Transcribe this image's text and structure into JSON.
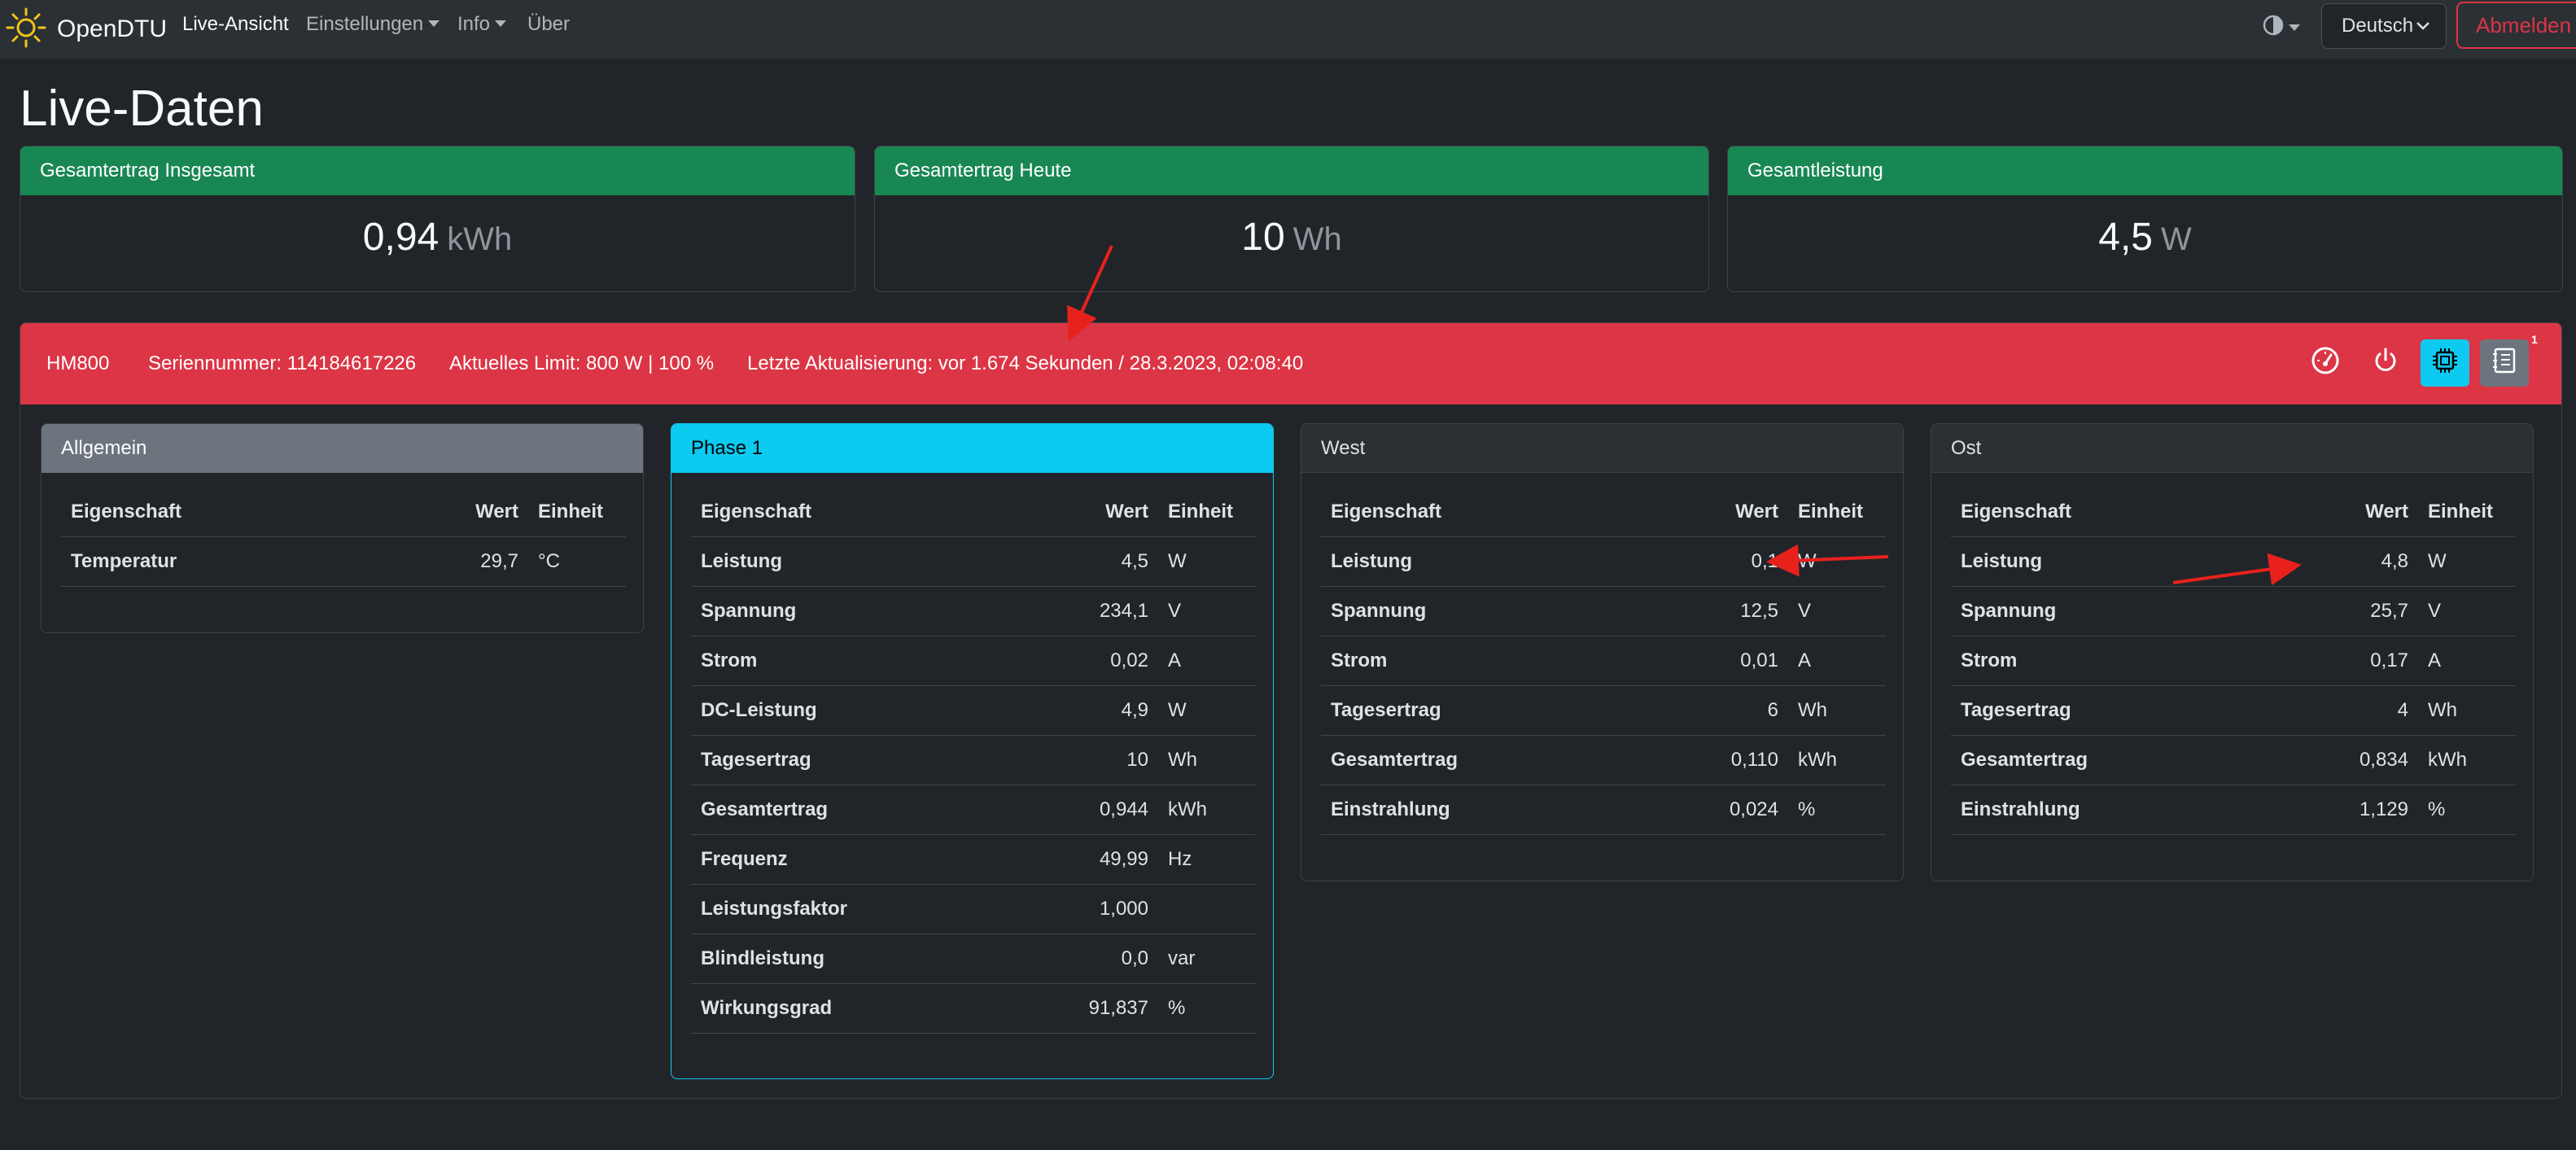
{
  "nav": {
    "brand": "OpenDTU",
    "items": [
      {
        "label": "Live-Ansicht",
        "active": true,
        "dropdown": false
      },
      {
        "label": "Einstellungen",
        "active": false,
        "dropdown": true
      },
      {
        "label": "Info",
        "active": false,
        "dropdown": true
      },
      {
        "label": "Über",
        "active": false,
        "dropdown": false
      }
    ],
    "language": "Deutsch",
    "logout": "Abmelden"
  },
  "page_title": "Live-Daten",
  "summary": [
    {
      "title": "Gesamtertrag Insgesamt",
      "value": "0,94",
      "unit": "kWh"
    },
    {
      "title": "Gesamtertrag Heute",
      "value": "10",
      "unit": "Wh"
    },
    {
      "title": "Gesamtleistung",
      "value": "4,5",
      "unit": "W"
    }
  ],
  "inverter": {
    "name": "HM800",
    "serial": "Seriennummer: 114184617226",
    "limit": "Aktuelles Limit: 800 W | 100 %",
    "update": "Letzte Aktualisierung: vor 1.674 Sekunden / 28.3.2023, 02:08:40",
    "badge": "1",
    "header_color": "#dc3545"
  },
  "channels": [
    {
      "title": "Allgemein",
      "headers": [
        "Eigenschaft",
        "Wert",
        "Einheit"
      ],
      "rows": [
        {
          "name": "Temperatur",
          "value": "29,7",
          "unit": "°C"
        }
      ]
    },
    {
      "title": "Phase 1",
      "headers": [
        "Eigenschaft",
        "Wert",
        "Einheit"
      ],
      "rows": [
        {
          "name": "Leistung",
          "value": "4,5",
          "unit": "W"
        },
        {
          "name": "Spannung",
          "value": "234,1",
          "unit": "V"
        },
        {
          "name": "Strom",
          "value": "0,02",
          "unit": "A"
        },
        {
          "name": "DC-Leistung",
          "value": "4,9",
          "unit": "W"
        },
        {
          "name": "Tagesertrag",
          "value": "10",
          "unit": "Wh"
        },
        {
          "name": "Gesamtertrag",
          "value": "0,944",
          "unit": "kWh"
        },
        {
          "name": "Frequenz",
          "value": "49,99",
          "unit": "Hz"
        },
        {
          "name": "Leistungsfaktor",
          "value": "1,000",
          "unit": ""
        },
        {
          "name": "Blindleistung",
          "value": "0,0",
          "unit": "var"
        },
        {
          "name": "Wirkungsgrad",
          "value": "91,837",
          "unit": "%"
        }
      ]
    },
    {
      "title": "West",
      "headers": [
        "Eigenschaft",
        "Wert",
        "Einheit"
      ],
      "rows": [
        {
          "name": "Leistung",
          "value": "0,1",
          "unit": "W"
        },
        {
          "name": "Spannung",
          "value": "12,5",
          "unit": "V"
        },
        {
          "name": "Strom",
          "value": "0,01",
          "unit": "A"
        },
        {
          "name": "Tagesertrag",
          "value": "6",
          "unit": "Wh"
        },
        {
          "name": "Gesamtertrag",
          "value": "0,110",
          "unit": "kWh"
        },
        {
          "name": "Einstrahlung",
          "value": "0,024",
          "unit": "%"
        }
      ]
    },
    {
      "title": "Ost",
      "headers": [
        "Eigenschaft",
        "Wert",
        "Einheit"
      ],
      "rows": [
        {
          "name": "Leistung",
          "value": "4,8",
          "unit": "W"
        },
        {
          "name": "Spannung",
          "value": "25,7",
          "unit": "V"
        },
        {
          "name": "Strom",
          "value": "0,17",
          "unit": "A"
        },
        {
          "name": "Tagesertrag",
          "value": "4",
          "unit": "Wh"
        },
        {
          "name": "Gesamtertrag",
          "value": "0,834",
          "unit": "kWh"
        },
        {
          "name": "Einstrahlung",
          "value": "1,129",
          "unit": "%"
        }
      ]
    }
  ],
  "colors": {
    "success": "#198754",
    "danger": "#dc3545",
    "info": "#0dcaf0",
    "secondary": "#6c757d",
    "annotation": "#e8211d"
  },
  "icons": [
    "sun-logo-icon",
    "theme-toggle-icon",
    "gauge-icon",
    "power-icon",
    "chip-icon",
    "notes-icon"
  ]
}
